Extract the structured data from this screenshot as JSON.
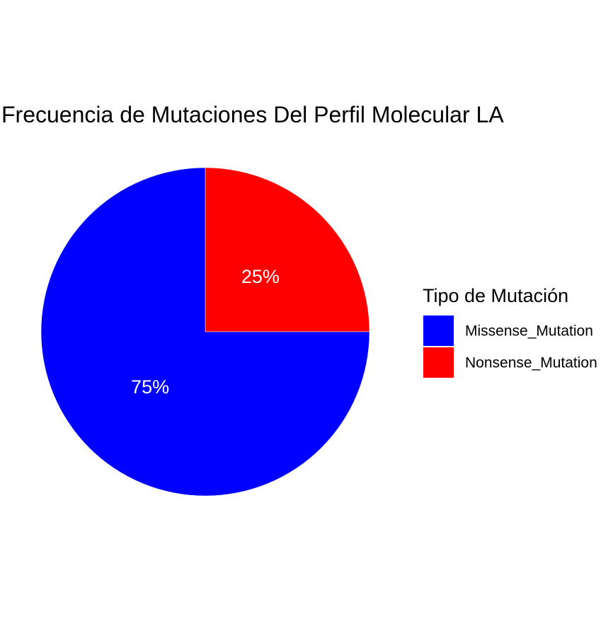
{
  "chart_data": {
    "type": "pie",
    "title": "Frecuencia de Mutaciones Del Perfil Molecular LA",
    "legend": {
      "title": "Tipo de Mutación",
      "placement": "right"
    },
    "categories": [
      "Missense_Mutation",
      "Nonsense_Mutation"
    ],
    "values": [
      75,
      25
    ],
    "labels": [
      "75%",
      "25%"
    ],
    "colors": [
      "#0000FF",
      "#FF0000"
    ],
    "start_angle": "12 o'clock",
    "direction": "counterclockwise",
    "grid": false
  }
}
